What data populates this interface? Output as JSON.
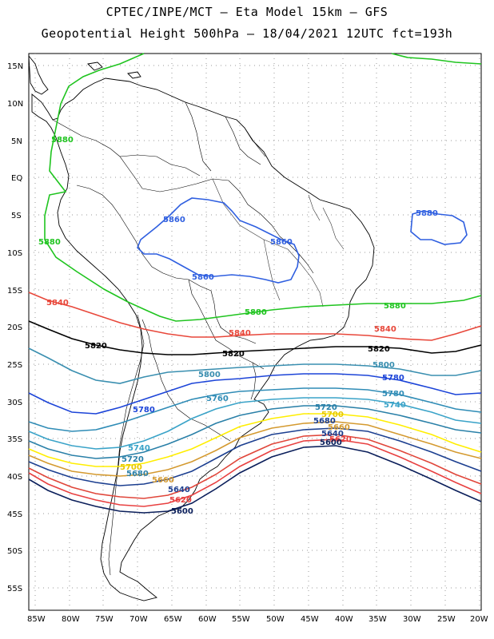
{
  "header": {
    "line1": "CPTEC/INPE/MCT –  Eta Model 15km – GFS",
    "line2": "Geopotential Height 500hPa – 18/04/2021 12UTC fct=193h"
  },
  "axes": {
    "lat_labels": [
      "15N",
      "10N",
      "5N",
      "EQ",
      "5S",
      "10S",
      "15S",
      "20S",
      "25S",
      "30S",
      "35S",
      "40S",
      "45S",
      "50S",
      "55S"
    ],
    "lon_labels": [
      "85W",
      "80W",
      "75W",
      "70W",
      "65W",
      "60W",
      "55W",
      "50W",
      "45W",
      "40W",
      "35W",
      "30W",
      "25W",
      "20W"
    ]
  },
  "colors": {
    "c5880": "#1fc41f",
    "c5860": "#2f5fe0",
    "c5840": "#e8473a",
    "c5820": "#000000",
    "c5800": "#3a8fb0",
    "c5780": "#1c44d8",
    "c5760": "#2f8cb6",
    "c5740": "#3aa3c8",
    "c5720": "#2a80a8",
    "c5700": "#ffee00",
    "c5680": "#d49a30",
    "c5660": "#1c3f90",
    "c5640": "#e0463a",
    "c5620": "#e84040",
    "c5600": "#0a1e5a"
  },
  "contour_labels": {
    "l5880a": "5880",
    "l5880b": "5880",
    "l5880c": "5880",
    "l5880d": "5880",
    "l5860a": "5860",
    "l5860b": "5860",
    "l5860c": "5860",
    "l5840a": "5840",
    "l5840b": "5840",
    "l5840c": "5840",
    "l5820a": "5820",
    "l5820b": "5820",
    "l5820c": "5820",
    "l5800a": "5800",
    "l5800b": "5800",
    "l5780a": "5780",
    "l5780b": "5780",
    "l5780c": "5780",
    "l5760a": "5760",
    "l5760b": "5760",
    "l5740a": "5740",
    "l5740b": "5740",
    "l5720a": "5720",
    "l5720b": "5720",
    "l5700a": "5700",
    "l5700b": "5700",
    "l5680a": "5680",
    "l5680b": "5680",
    "l5660a": "5660",
    "l5660b": "5660",
    "l5640a": "5640",
    "l5640b": "5640",
    "l5620a": "5620",
    "l5620b": "5620",
    "l5600a": "5600",
    "l5600b": "5600"
  }
}
